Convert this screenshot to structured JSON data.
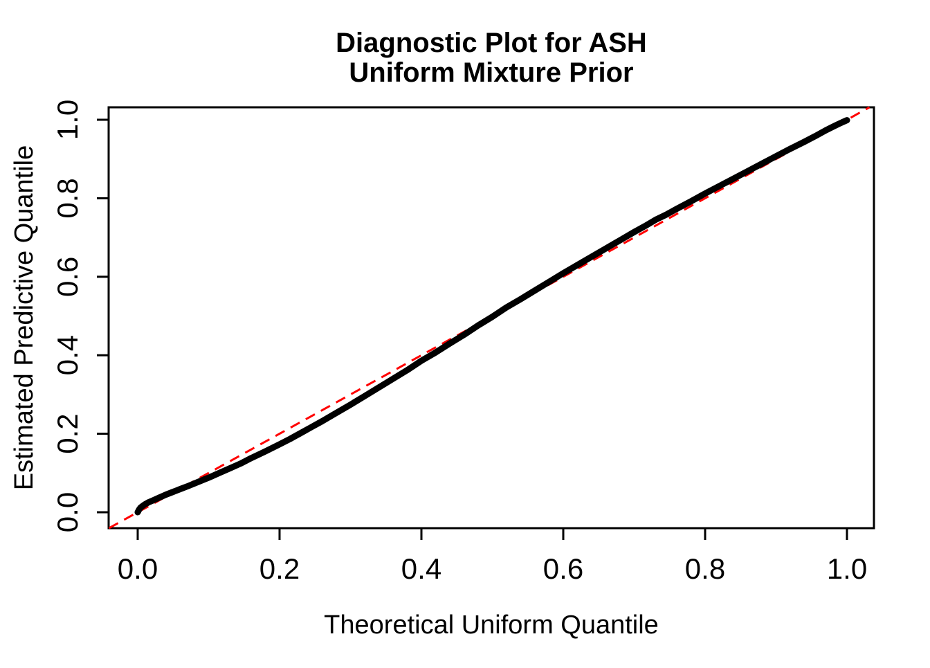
{
  "figure": {
    "background": "#FFFFFF"
  },
  "chart_data": {
    "type": "line",
    "subtype": "qq-diagnostic-plot",
    "title_line1": "Diagnostic Plot for ASH",
    "title_line2": "Uniform Mixture Prior",
    "xlabel": "Theoretical Uniform Quantile",
    "ylabel": "Estimated Predictive Quantile",
    "xlim": [
      -0.041,
      1.038
    ],
    "ylim": [
      -0.041,
      1.032
    ],
    "grid": false,
    "legend": null,
    "x_ticks": [
      0.0,
      0.2,
      0.4,
      0.6,
      0.8,
      1.0
    ],
    "y_ticks": [
      0.0,
      0.2,
      0.4,
      0.6,
      0.8,
      1.0
    ],
    "x_tick_labels": [
      "0.0",
      "0.2",
      "0.4",
      "0.6",
      "0.8",
      "1.0"
    ],
    "y_tick_labels": [
      "0.0",
      "0.2",
      "0.4",
      "0.6",
      "0.8",
      "1.0"
    ],
    "series": [
      {
        "name": "estimated-predictive-quantile-curve",
        "color": "#000000",
        "stroke_width": 9,
        "points": [
          [
            0.0,
            0.0
          ],
          [
            0.002,
            0.007
          ],
          [
            0.004,
            0.012
          ],
          [
            0.007,
            0.016
          ],
          [
            0.01,
            0.02
          ],
          [
            0.015,
            0.025
          ],
          [
            0.02,
            0.029
          ],
          [
            0.03,
            0.037
          ],
          [
            0.04,
            0.045
          ],
          [
            0.05,
            0.052
          ],
          [
            0.06,
            0.059
          ],
          [
            0.07,
            0.066
          ],
          [
            0.085,
            0.077
          ],
          [
            0.1,
            0.088
          ],
          [
            0.115,
            0.1
          ],
          [
            0.13,
            0.112
          ],
          [
            0.145,
            0.124
          ],
          [
            0.16,
            0.138
          ],
          [
            0.18,
            0.155
          ],
          [
            0.2,
            0.173
          ],
          [
            0.215,
            0.187
          ],
          [
            0.23,
            0.202
          ],
          [
            0.245,
            0.217
          ],
          [
            0.26,
            0.232
          ],
          [
            0.28,
            0.253
          ],
          [
            0.3,
            0.274
          ],
          [
            0.32,
            0.296
          ],
          [
            0.34,
            0.318
          ],
          [
            0.36,
            0.34
          ],
          [
            0.38,
            0.362
          ],
          [
            0.4,
            0.386
          ],
          [
            0.42,
            0.407
          ],
          [
            0.44,
            0.43
          ],
          [
            0.46,
            0.452
          ],
          [
            0.48,
            0.476
          ],
          [
            0.5,
            0.498
          ],
          [
            0.52,
            0.522
          ],
          [
            0.54,
            0.543
          ],
          [
            0.56,
            0.565
          ],
          [
            0.58,
            0.587
          ],
          [
            0.6,
            0.609
          ],
          [
            0.62,
            0.63
          ],
          [
            0.64,
            0.651
          ],
          [
            0.66,
            0.672
          ],
          [
            0.68,
            0.693
          ],
          [
            0.7,
            0.714
          ],
          [
            0.715,
            0.729
          ],
          [
            0.73,
            0.745
          ],
          [
            0.745,
            0.758
          ],
          [
            0.76,
            0.773
          ],
          [
            0.78,
            0.792
          ],
          [
            0.8,
            0.812
          ],
          [
            0.82,
            0.831
          ],
          [
            0.84,
            0.85
          ],
          [
            0.86,
            0.869
          ],
          [
            0.88,
            0.888
          ],
          [
            0.9,
            0.907
          ],
          [
            0.92,
            0.926
          ],
          [
            0.94,
            0.944
          ],
          [
            0.955,
            0.958
          ],
          [
            0.97,
            0.973
          ],
          [
            0.98,
            0.982
          ],
          [
            0.988,
            0.989
          ],
          [
            0.994,
            0.994
          ],
          [
            1.0,
            0.999
          ]
        ]
      }
    ],
    "reference_line": {
      "name": "y-equals-x-diagonal",
      "color": "#FF0000",
      "style": "dashed",
      "stroke_width": 3,
      "from": [
        -0.0405,
        -0.0405
      ],
      "to": [
        1.0317,
        1.0317
      ]
    }
  },
  "colors": {
    "curve": "#000000",
    "reference": "#FF0000",
    "axis": "#000000",
    "background": "#FFFFFF"
  }
}
